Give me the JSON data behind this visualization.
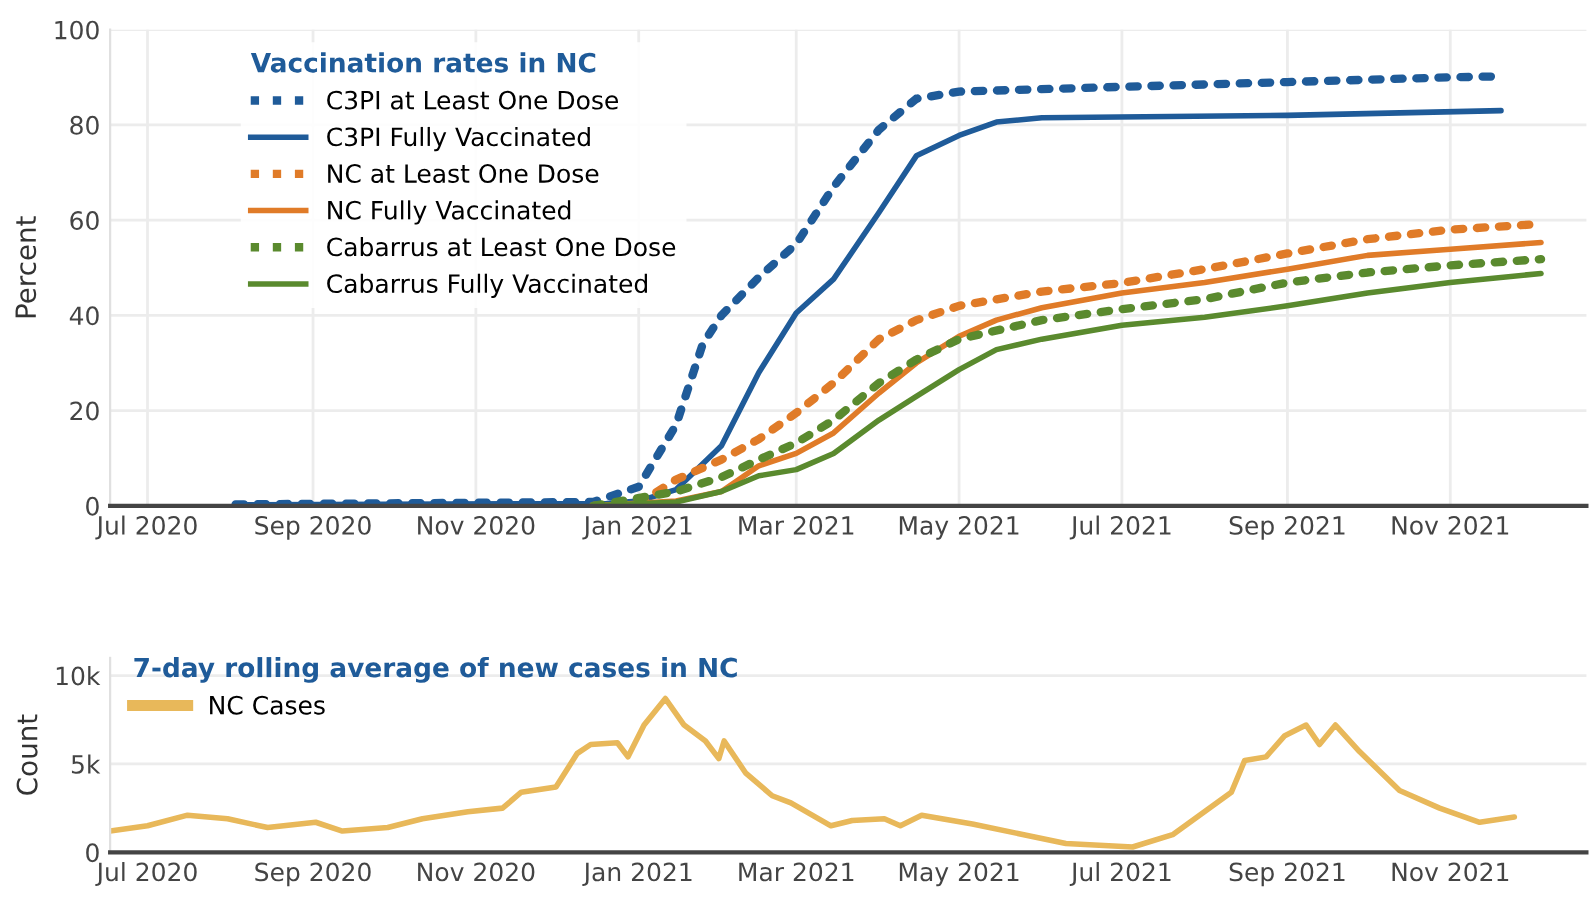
{
  "chart_data": [
    {
      "type": "line",
      "ylabel": "Percent",
      "legend_title": "Vaccination rates in NC",
      "legend": "top left",
      "grid": true,
      "marker": "none",
      "xlim": [
        "2020-06-17",
        "2021-12-22"
      ],
      "ylim": [
        0,
        100
      ],
      "yticks": [
        0,
        20,
        40,
        60,
        80,
        100
      ],
      "xticks": [
        {
          "value": "2020-07-01",
          "label": "Jul 2020"
        },
        {
          "value": "2020-09-01",
          "label": "Sep 2020"
        },
        {
          "value": "2020-11-01",
          "label": "Nov 2020"
        },
        {
          "value": "2021-01-01",
          "label": "Jan 2021"
        },
        {
          "value": "2021-03-01",
          "label": "Mar 2021"
        },
        {
          "value": "2021-05-01",
          "label": "May 2021"
        },
        {
          "value": "2021-07-01",
          "label": "Jul 2021"
        },
        {
          "value": "2021-09-01",
          "label": "Sep 2021"
        },
        {
          "value": "2021-11-01",
          "label": "Nov 2021"
        }
      ],
      "series": [
        {
          "name": "C3PI at Least One Dose",
          "color": "#1f5b99",
          "line_style": "dotted",
          "x": [
            "2020-08-03",
            "2020-12-15",
            "2021-01-01",
            "2021-01-15",
            "2021-01-25",
            "2021-02-01",
            "2021-02-15",
            "2021-03-01",
            "2021-03-15",
            "2021-04-01",
            "2021-04-15",
            "2021-05-01",
            "2021-07-01",
            "2021-09-01",
            "2021-11-01",
            "2021-11-20"
          ],
          "values": [
            0.3,
            0.8,
            4,
            17,
            34,
            40,
            48,
            55,
            67,
            79,
            85.5,
            87,
            88,
            89,
            90,
            90.2
          ]
        },
        {
          "name": "C3PI Fully Vaccinated",
          "color": "#1f5b99",
          "line_style": "solid",
          "x": [
            "2020-08-03",
            "2020-12-20",
            "2021-01-01",
            "2021-01-15",
            "2021-02-01",
            "2021-02-15",
            "2021-03-01",
            "2021-03-15",
            "2021-04-01",
            "2021-04-15",
            "2021-05-01",
            "2021-05-15",
            "2021-06-01",
            "2021-09-01",
            "2021-11-20"
          ],
          "values": [
            0.2,
            0.5,
            1,
            3.4,
            12.6,
            28,
            40.5,
            47.6,
            61.6,
            73.5,
            77.8,
            80.6,
            81.5,
            82,
            83
          ]
        },
        {
          "name": "NC at Least One Dose",
          "color": "#e07b28",
          "line_style": "dotted",
          "x": [
            "2020-12-15",
            "2021-01-01",
            "2021-01-15",
            "2021-02-01",
            "2021-02-15",
            "2021-03-01",
            "2021-03-15",
            "2021-04-01",
            "2021-04-15",
            "2021-05-01",
            "2021-06-01",
            "2021-07-01",
            "2021-08-01",
            "2021-09-01",
            "2021-10-01",
            "2021-11-01",
            "2021-12-05"
          ],
          "values": [
            0,
            0.5,
            5.5,
            9.7,
            14,
            19.5,
            25.8,
            35,
            39,
            42,
            45,
            46.8,
            49.7,
            53,
            56,
            58,
            59.2
          ]
        },
        {
          "name": "NC Fully Vaccinated",
          "color": "#e07b28",
          "line_style": "solid",
          "x": [
            "2020-12-15",
            "2021-01-15",
            "2021-02-01",
            "2021-02-15",
            "2021-03-01",
            "2021-03-15",
            "2021-04-01",
            "2021-04-15",
            "2021-05-01",
            "2021-05-15",
            "2021-06-01",
            "2021-07-01",
            "2021-08-01",
            "2021-09-01",
            "2021-10-01",
            "2021-11-01",
            "2021-12-05"
          ],
          "values": [
            0,
            1,
            3,
            8.4,
            11,
            15.3,
            23.7,
            30,
            35.6,
            39,
            41.6,
            44.7,
            46.9,
            49.7,
            52.6,
            53.9,
            55.3
          ]
        },
        {
          "name": "Cabarrus at Least One Dose",
          "color": "#5a8a2e",
          "line_style": "dotted",
          "x": [
            "2020-12-15",
            "2021-01-15",
            "2021-02-01",
            "2021-02-15",
            "2021-03-01",
            "2021-03-15",
            "2021-04-01",
            "2021-04-15",
            "2021-05-01",
            "2021-06-01",
            "2021-07-01",
            "2021-08-01",
            "2021-09-01",
            "2021-10-01",
            "2021-11-01",
            "2021-12-05"
          ],
          "values": [
            0,
            3,
            6,
            9.7,
            13.2,
            18,
            25.8,
            30.7,
            35,
            39,
            41.3,
            43.4,
            46.9,
            49,
            50.5,
            51.8
          ]
        },
        {
          "name": "Cabarrus Fully Vaccinated",
          "color": "#5a8a2e",
          "line_style": "solid",
          "x": [
            "2020-12-15",
            "2021-01-15",
            "2021-02-01",
            "2021-02-15",
            "2021-03-01",
            "2021-03-15",
            "2021-04-01",
            "2021-04-15",
            "2021-05-01",
            "2021-05-15",
            "2021-06-01",
            "2021-07-01",
            "2021-08-01",
            "2021-09-01",
            "2021-10-01",
            "2021-11-01",
            "2021-12-05"
          ],
          "values": [
            0,
            0.8,
            3,
            6.3,
            7.6,
            11,
            18,
            23,
            28.6,
            32.8,
            35,
            37.9,
            39.6,
            42,
            44.7,
            46.9,
            48.8
          ]
        }
      ]
    },
    {
      "type": "line",
      "ylabel": "Count",
      "legend_title": "7-day rolling average of new cases in NC",
      "legend": "top left",
      "grid": "y",
      "marker": "none",
      "xlim": [
        "2020-06-17",
        "2021-12-22"
      ],
      "ylim": [
        0,
        11000
      ],
      "yticks": [
        0,
        {
          "value": 5000,
          "label": "5k"
        },
        {
          "value": 10000,
          "label": "10k"
        }
      ],
      "xticks": [
        {
          "value": "2020-07-01",
          "label": "Jul 2020"
        },
        {
          "value": "2020-09-01",
          "label": "Sep 2020"
        },
        {
          "value": "2020-11-01",
          "label": "Nov 2020"
        },
        {
          "value": "2021-01-01",
          "label": "Jan 2021"
        },
        {
          "value": "2021-03-01",
          "label": "Mar 2021"
        },
        {
          "value": "2021-05-01",
          "label": "May 2021"
        },
        {
          "value": "2021-07-01",
          "label": "Jul 2021"
        },
        {
          "value": "2021-09-01",
          "label": "Sep 2021"
        },
        {
          "value": "2021-11-01",
          "label": "Nov 2021"
        }
      ],
      "series": [
        {
          "name": "NC Cases",
          "color": "#e8b85a",
          "line_style": "solid",
          "x": [
            "2020-06-17",
            "2020-07-01",
            "2020-07-16",
            "2020-07-31",
            "2020-08-15",
            "2020-09-02",
            "2020-09-12",
            "2020-09-29",
            "2020-10-12",
            "2020-10-29",
            "2020-11-11",
            "2020-11-18",
            "2020-12-01",
            "2020-12-09",
            "2020-12-14",
            "2020-12-24",
            "2020-12-28",
            "2021-01-03",
            "2021-01-11",
            "2021-01-18",
            "2021-01-26",
            "2021-01-31",
            "2021-02-02",
            "2021-02-10",
            "2021-02-20",
            "2021-02-27",
            "2021-03-14",
            "2021-03-22",
            "2021-04-03",
            "2021-04-09",
            "2021-04-17",
            "2021-05-06",
            "2021-06-10",
            "2021-07-05",
            "2021-07-20",
            "2021-08-11",
            "2021-08-16",
            "2021-08-24",
            "2021-08-31",
            "2021-09-08",
            "2021-09-13",
            "2021-09-19",
            "2021-09-28",
            "2021-10-13",
            "2021-10-28",
            "2021-11-12",
            "2021-11-25"
          ],
          "values": [
            1200,
            1500,
            2100,
            1900,
            1400,
            1700,
            1200,
            1400,
            1900,
            2300,
            2500,
            3400,
            3700,
            5600,
            6100,
            6200,
            5400,
            7200,
            8700,
            7200,
            6300,
            5300,
            6300,
            4500,
            3200,
            2800,
            1500,
            1800,
            1900,
            1500,
            2100,
            1600,
            500,
            300,
            1000,
            3400,
            5200,
            5400,
            6600,
            7200,
            6100,
            7200,
            5700,
            3500,
            2500,
            1700,
            2000
          ]
        }
      ]
    }
  ]
}
